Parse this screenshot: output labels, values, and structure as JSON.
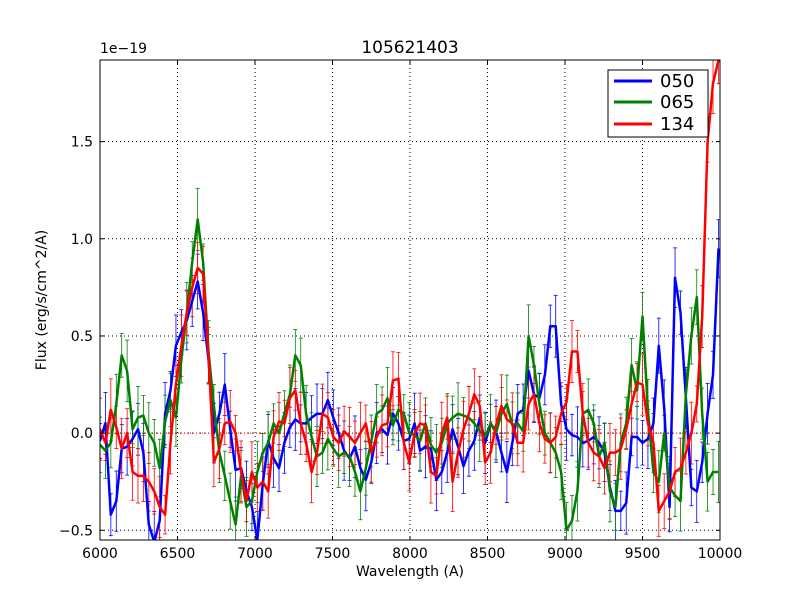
{
  "chart_data": {
    "type": "line",
    "title": "105621403",
    "xlabel": "Wavelength (A)",
    "ylabel": "Flux (erg/s/cm^2/A)",
    "y_offset_label": "1e−19",
    "xlim": [
      6000,
      10000
    ],
    "ylim": [
      -0.55,
      1.92
    ],
    "x_ticks": [
      6000,
      6500,
      7000,
      7500,
      8000,
      8500,
      9000,
      9500,
      10000
    ],
    "x_tick_labels": [
      "6000",
      "6500",
      "7000",
      "7500",
      "8000",
      "8500",
      "9000",
      "9500",
      "10000"
    ],
    "y_ticks": [
      -0.5,
      0.0,
      0.5,
      1.0,
      1.5
    ],
    "y_tick_labels": [
      "−0.5",
      "0.0",
      "0.5",
      "1.0",
      "1.5"
    ],
    "grid": true,
    "legend_position": "top-right",
    "reference_line": {
      "y": 0.0,
      "color": "#ff0000",
      "style": "dotted"
    },
    "series": [
      {
        "name": "050",
        "color": "#0000ff",
        "x": [
          6000,
          6035,
          6070,
          6105,
          6140,
          6175,
          6210,
          6245,
          6280,
          6315,
          6350,
          6385,
          6420,
          6455,
          6490,
          6525,
          6560,
          6595,
          6630,
          6665,
          6700,
          6735,
          6770,
          6805,
          6840,
          6875,
          6910,
          6945,
          6980,
          7015,
          7050,
          7085,
          7120,
          7155,
          7190,
          7225,
          7260,
          7295,
          7330,
          7365,
          7400,
          7435,
          7470,
          7505,
          7540,
          7575,
          7610,
          7645,
          7680,
          7715,
          7750,
          7785,
          7820,
          7855,
          7890,
          7925,
          7960,
          7995,
          8030,
          8065,
          8100,
          8135,
          8170,
          8205,
          8240,
          8275,
          8310,
          8345,
          8380,
          8415,
          8450,
          8485,
          8520,
          8555,
          8590,
          8625,
          8660,
          8695,
          8730,
          8765,
          8800,
          8835,
          8870,
          8905,
          8940,
          8975,
          9010,
          9045,
          9080,
          9115,
          9150,
          9185,
          9220,
          9255,
          9290,
          9325,
          9360,
          9395,
          9430,
          9465,
          9500,
          9535,
          9570,
          9605,
          9640,
          9675,
          9710,
          9745,
          9780,
          9815,
          9850,
          9885,
          9920,
          9955,
          9990
        ],
        "y": [
          -0.04,
          0.05,
          -0.42,
          -0.35,
          -0.08,
          -0.07,
          -0.03,
          0.02,
          -0.1,
          -0.47,
          -0.56,
          -0.45,
          0.1,
          0.22,
          0.45,
          0.52,
          0.58,
          0.68,
          0.78,
          0.62,
          0.38,
          0.0,
          0.1,
          0.25,
          0.02,
          -0.19,
          -0.18,
          -0.3,
          -0.38,
          -0.55,
          -0.26,
          -0.04,
          -0.13,
          -0.18,
          -0.05,
          0.03,
          0.07,
          0.05,
          0.05,
          0.08,
          0.1,
          0.1,
          0.17,
          0.08,
          0.0,
          -0.09,
          -0.13,
          -0.07,
          -0.18,
          -0.24,
          -0.15,
          0.0,
          0.02,
          -0.01,
          0.1,
          0.05,
          -0.04,
          -0.03,
          0.05,
          -0.09,
          -0.07,
          -0.08,
          -0.24,
          -0.2,
          -0.1,
          0.02,
          -0.07,
          -0.17,
          -0.09,
          -0.04,
          0.08,
          -0.05,
          0.05,
          0.01,
          -0.1,
          -0.2,
          -0.05,
          0.1,
          0.12,
          0.32,
          0.2,
          0.18,
          0.3,
          0.55,
          0.55,
          0.15,
          0.02,
          -0.01,
          -0.02,
          -0.05,
          -0.04,
          -0.02,
          -0.05,
          -0.1,
          -0.28,
          -0.4,
          -0.4,
          -0.36,
          -0.02,
          -0.02,
          -0.05,
          -0.03,
          0.05,
          0.45,
          0.13,
          -0.38,
          0.8,
          0.62,
          0.18,
          -0.28,
          -0.3,
          -0.15,
          0.1,
          0.3,
          0.95
        ]
      },
      {
        "name": "065",
        "color": "#008000",
        "x": [
          6000,
          6035,
          6070,
          6105,
          6140,
          6175,
          6210,
          6245,
          6280,
          6315,
          6350,
          6385,
          6420,
          6455,
          6490,
          6525,
          6560,
          6595,
          6630,
          6665,
          6700,
          6735,
          6770,
          6805,
          6840,
          6875,
          6910,
          6945,
          6980,
          7015,
          7050,
          7085,
          7120,
          7155,
          7190,
          7225,
          7260,
          7295,
          7330,
          7365,
          7400,
          7435,
          7470,
          7505,
          7540,
          7575,
          7610,
          7645,
          7680,
          7715,
          7750,
          7785,
          7820,
          7855,
          7890,
          7925,
          7960,
          7995,
          8030,
          8065,
          8100,
          8135,
          8170,
          8205,
          8240,
          8275,
          8310,
          8345,
          8380,
          8415,
          8450,
          8485,
          8520,
          8555,
          8590,
          8625,
          8660,
          8695,
          8730,
          8765,
          8800,
          8835,
          8870,
          8905,
          8940,
          8975,
          9010,
          9045,
          9080,
          9115,
          9150,
          9185,
          9220,
          9255,
          9290,
          9325,
          9360,
          9395,
          9430,
          9465,
          9500,
          9535,
          9570,
          9605,
          9640,
          9675,
          9710,
          9745,
          9780,
          9815,
          9850,
          9885,
          9920,
          9955,
          9990
        ],
        "y": [
          -0.06,
          -0.09,
          -0.05,
          0.15,
          0.4,
          0.32,
          0.02,
          0.08,
          0.09,
          0.0,
          -0.05,
          -0.18,
          0.06,
          0.17,
          0.08,
          0.38,
          0.62,
          0.88,
          1.1,
          0.88,
          0.42,
          0.14,
          -0.1,
          -0.22,
          -0.35,
          -0.47,
          -0.22,
          -0.38,
          -0.35,
          -0.2,
          -0.1,
          -0.05,
          0.05,
          0.0,
          0.1,
          0.2,
          0.4,
          0.35,
          0.1,
          -0.02,
          -0.12,
          -0.1,
          -0.03,
          -0.08,
          -0.12,
          -0.1,
          -0.12,
          -0.2,
          -0.3,
          -0.18,
          -0.04,
          0.1,
          0.12,
          0.18,
          0.04,
          0.12,
          0.1,
          0.0,
          -0.01,
          -0.04,
          0.05,
          -0.06,
          -0.1,
          -0.05,
          0.05,
          0.08,
          0.1,
          0.09,
          0.08,
          0.05,
          0.01,
          -0.02,
          0.05,
          0.0,
          0.1,
          0.15,
          0.04,
          0.05,
          0.01,
          0.5,
          0.35,
          0.15,
          0.0,
          -0.05,
          -0.1,
          -0.2,
          -0.5,
          -0.45,
          -0.3,
          0.1,
          0.12,
          0.05,
          -0.12,
          -0.05,
          -0.3,
          -0.38,
          -0.05,
          0.05,
          0.35,
          0.22,
          0.6,
          0.12,
          -0.2,
          -0.25,
          0.0,
          -0.28,
          -0.32,
          -0.35,
          0.2,
          0.5,
          0.7,
          0.1,
          -0.25,
          -0.2,
          -0.2
        ]
      },
      {
        "name": "134",
        "color": "#ff0000",
        "x": [
          6000,
          6035,
          6070,
          6105,
          6140,
          6175,
          6210,
          6245,
          6280,
          6315,
          6350,
          6385,
          6420,
          6455,
          6490,
          6525,
          6560,
          6595,
          6630,
          6665,
          6700,
          6735,
          6770,
          6805,
          6840,
          6875,
          6910,
          6945,
          6980,
          7015,
          7050,
          7085,
          7120,
          7155,
          7190,
          7225,
          7260,
          7295,
          7330,
          7365,
          7400,
          7435,
          7470,
          7505,
          7540,
          7575,
          7610,
          7645,
          7680,
          7715,
          7750,
          7785,
          7820,
          7855,
          7890,
          7925,
          7960,
          7995,
          8030,
          8065,
          8100,
          8135,
          8170,
          8205,
          8240,
          8275,
          8310,
          8345,
          8380,
          8415,
          8450,
          8485,
          8520,
          8555,
          8590,
          8625,
          8660,
          8695,
          8730,
          8765,
          8800,
          8835,
          8870,
          8905,
          8940,
          8975,
          9010,
          9045,
          9080,
          9115,
          9150,
          9185,
          9220,
          9255,
          9290,
          9325,
          9360,
          9395,
          9430,
          9465,
          9500,
          9535,
          9570,
          9605,
          9640,
          9675,
          9710,
          9745,
          9780,
          9815,
          9850,
          9885,
          9920,
          9955,
          9990
        ],
        "y": [
          0.02,
          -0.05,
          0.12,
          0.03,
          -0.08,
          0.0,
          -0.2,
          -0.22,
          -0.22,
          -0.25,
          -0.3,
          -0.38,
          -0.42,
          -0.05,
          0.25,
          0.45,
          0.62,
          0.75,
          0.85,
          0.82,
          0.4,
          -0.15,
          -0.08,
          0.05,
          0.06,
          0.0,
          -0.2,
          -0.35,
          -0.2,
          -0.28,
          -0.25,
          -0.3,
          -0.02,
          0.06,
          0.05,
          0.18,
          0.22,
          0.05,
          -0.05,
          -0.2,
          -0.1,
          0.1,
          0.08,
          -0.02,
          -0.05,
          0.01,
          -0.02,
          -0.05,
          0.0,
          0.05,
          -0.1,
          -0.02,
          0.04,
          0.05,
          0.27,
          0.28,
          -0.05,
          -0.15,
          0.0,
          0.05,
          0.04,
          -0.2,
          -0.22,
          0.0,
          0.08,
          -0.25,
          -0.1,
          0.02,
          0.1,
          0.2,
          0.14,
          -0.15,
          -0.1,
          0.04,
          0.14,
          0.07,
          0.05,
          -0.05,
          -0.05,
          0.15,
          0.2,
          0.05,
          -0.03,
          -0.05,
          -0.02,
          0.1,
          0.16,
          0.42,
          0.42,
          0.1,
          -0.05,
          -0.1,
          -0.12,
          -0.18,
          -0.1,
          -0.1,
          -0.08,
          0.02,
          0.15,
          0.26,
          0.25,
          0.05,
          -0.05,
          -0.4,
          -0.35,
          -0.3,
          -0.2,
          -0.18,
          -0.1,
          0.0,
          0.15,
          0.6,
          1.5,
          1.8,
          1.92
        ]
      }
    ]
  }
}
